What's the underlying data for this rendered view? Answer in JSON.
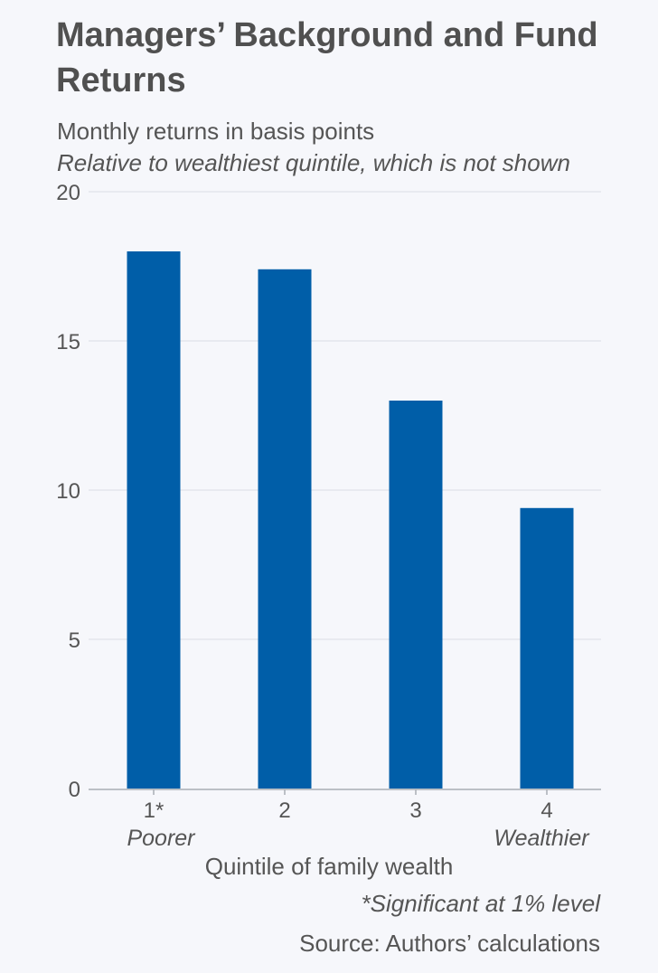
{
  "chart_data": {
    "type": "bar",
    "title": "Managers’ Background and Fund Returns",
    "subtitle": "Monthly returns in basis points",
    "subtitle2": "Relative to wealthiest quintile, which is not shown",
    "categories": [
      "1*",
      "2",
      "3",
      "4"
    ],
    "category_sublabels": [
      "Poorer",
      "",
      "",
      "Wealthier"
    ],
    "values": [
      18,
      17.4,
      13,
      9.4
    ],
    "xlabel": "Quintile of family wealth",
    "ylabel": "",
    "ylim": [
      0,
      20
    ],
    "yticks": [
      0,
      5,
      10,
      15,
      20
    ],
    "grid": true,
    "bar_color": "#005ea8",
    "footnote": "*Significant at 1% level",
    "source": "Source: Authors’ calculations"
  }
}
